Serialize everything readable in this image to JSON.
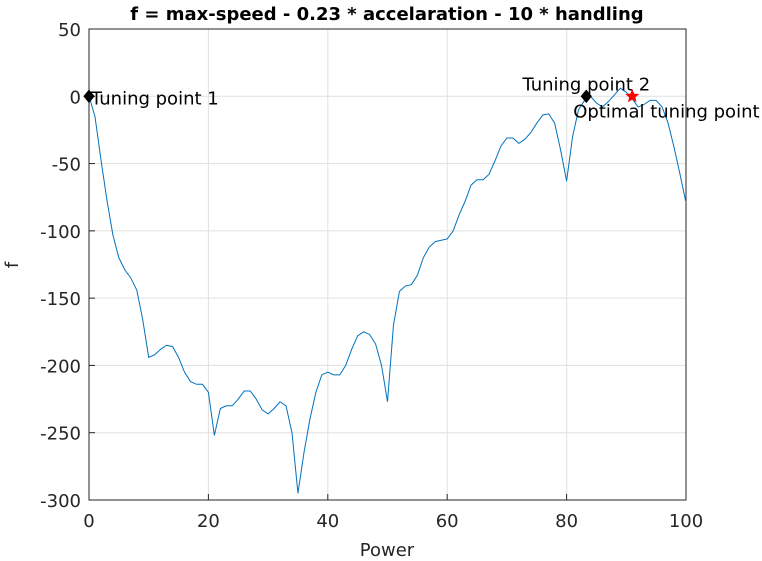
{
  "chart_data": {
    "type": "line",
    "title": "f = max-speed - 0.23 * accelaration - 10 * handling",
    "x_label": "Power",
    "y_label": "f",
    "xlim": [
      0,
      100
    ],
    "ylim": [
      -300,
      50
    ],
    "xticks": [
      0,
      20,
      40,
      60,
      80,
      100
    ],
    "yticks": [
      -300,
      -250,
      -200,
      -150,
      -100,
      -50,
      0,
      50
    ],
    "grid": true,
    "series": [
      {
        "color": "#0072bd",
        "x": [
          0,
          1,
          2,
          3,
          4,
          5,
          6,
          7,
          8,
          9,
          10,
          11,
          12,
          13,
          14,
          15,
          16,
          17,
          18,
          19,
          20,
          21,
          22,
          23,
          24,
          25,
          26,
          27,
          28,
          29,
          30,
          31,
          32,
          33,
          34,
          35,
          36,
          37,
          38,
          39,
          40,
          41,
          42,
          43,
          44,
          45,
          46,
          47,
          48,
          49,
          50,
          51,
          52,
          53,
          54,
          55,
          56,
          57,
          58,
          59,
          60,
          61,
          62,
          63,
          64,
          65,
          66,
          67,
          68,
          69,
          70,
          71,
          72,
          73,
          74,
          75,
          76,
          77,
          78,
          79,
          80,
          81,
          82,
          83,
          84,
          85,
          86,
          87,
          88,
          89,
          90,
          91,
          92,
          93,
          94,
          95,
          96,
          97,
          98,
          99,
          100
        ],
        "values": [
          0,
          -15,
          -47,
          -77,
          -103,
          -120,
          -129,
          -135,
          -144,
          -166,
          -194,
          -192,
          -188,
          -185,
          -186,
          -194,
          -205,
          -212,
          -214,
          -214,
          -220,
          -252,
          -232,
          -230,
          -230,
          -225,
          -219,
          -219,
          -225,
          -233,
          -236,
          -232,
          -227,
          -230,
          -250,
          -295,
          -265,
          -240,
          -220,
          -207,
          -205,
          -207,
          -207,
          -200,
          -188,
          -178,
          -175,
          -177,
          -184,
          -200,
          -227,
          -170,
          -145,
          -141,
          -140,
          -133,
          -120,
          -112,
          -108,
          -107,
          -106,
          -100,
          -88,
          -78,
          -66,
          -62,
          -62,
          -58,
          -48,
          -37,
          -31,
          -31,
          -35,
          -32,
          -27,
          -20,
          -14,
          -13,
          -20,
          -40,
          -63,
          -30,
          -10,
          -3,
          0,
          -5,
          -8,
          -4,
          1,
          6,
          3,
          -2,
          -8,
          -6,
          -3,
          -3,
          -8,
          -20,
          -38,
          -58,
          -79
        ]
      }
    ],
    "points": [
      {
        "label": "Tuning point 1",
        "x": 0,
        "y": 0,
        "color": "#000000",
        "marker": "diamond"
      },
      {
        "label": "Tuning point 2",
        "x": 83.3,
        "y": 0,
        "color": "#000000",
        "marker": "diamond"
      },
      {
        "label": "Optimal tuning point",
        "x": 91,
        "y": 0,
        "color": "#ff0000",
        "marker": "star"
      }
    ]
  }
}
